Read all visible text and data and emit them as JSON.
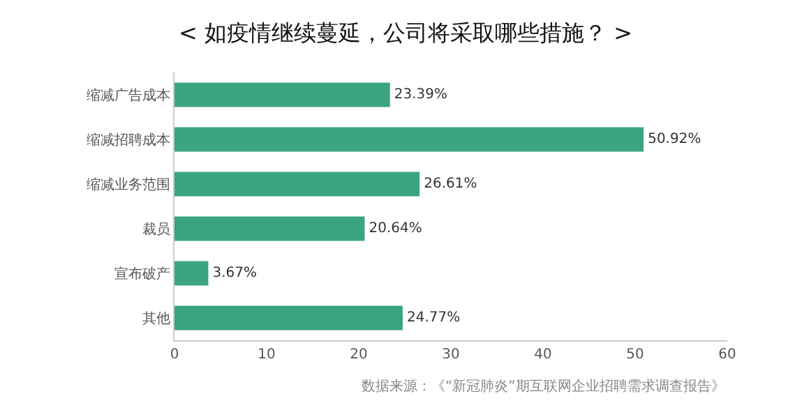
{
  "chart_data": {
    "type": "bar",
    "orientation": "horizontal",
    "title": "< 如疫情继续蔓延，公司将采取哪些措施？ >",
    "categories": [
      "缩减广告成本",
      "缩减招聘成本",
      "缩减业务范围",
      "裁员",
      "宣布破产",
      "其他"
    ],
    "values": [
      23.39,
      50.92,
      26.61,
      20.64,
      3.67,
      24.77
    ],
    "value_labels": [
      "23.39%",
      "50.92%",
      "26.61%",
      "20.64%",
      "3.67%",
      "24.77%"
    ],
    "color": "#3aa57e",
    "xlim": [
      0,
      60
    ],
    "xticks": [
      0,
      10,
      20,
      30,
      40,
      50,
      60
    ],
    "grid": false,
    "annotations": [
      "数据来源：《“新冠肺炎”期互联网企业招聘需求调查报告》"
    ]
  }
}
